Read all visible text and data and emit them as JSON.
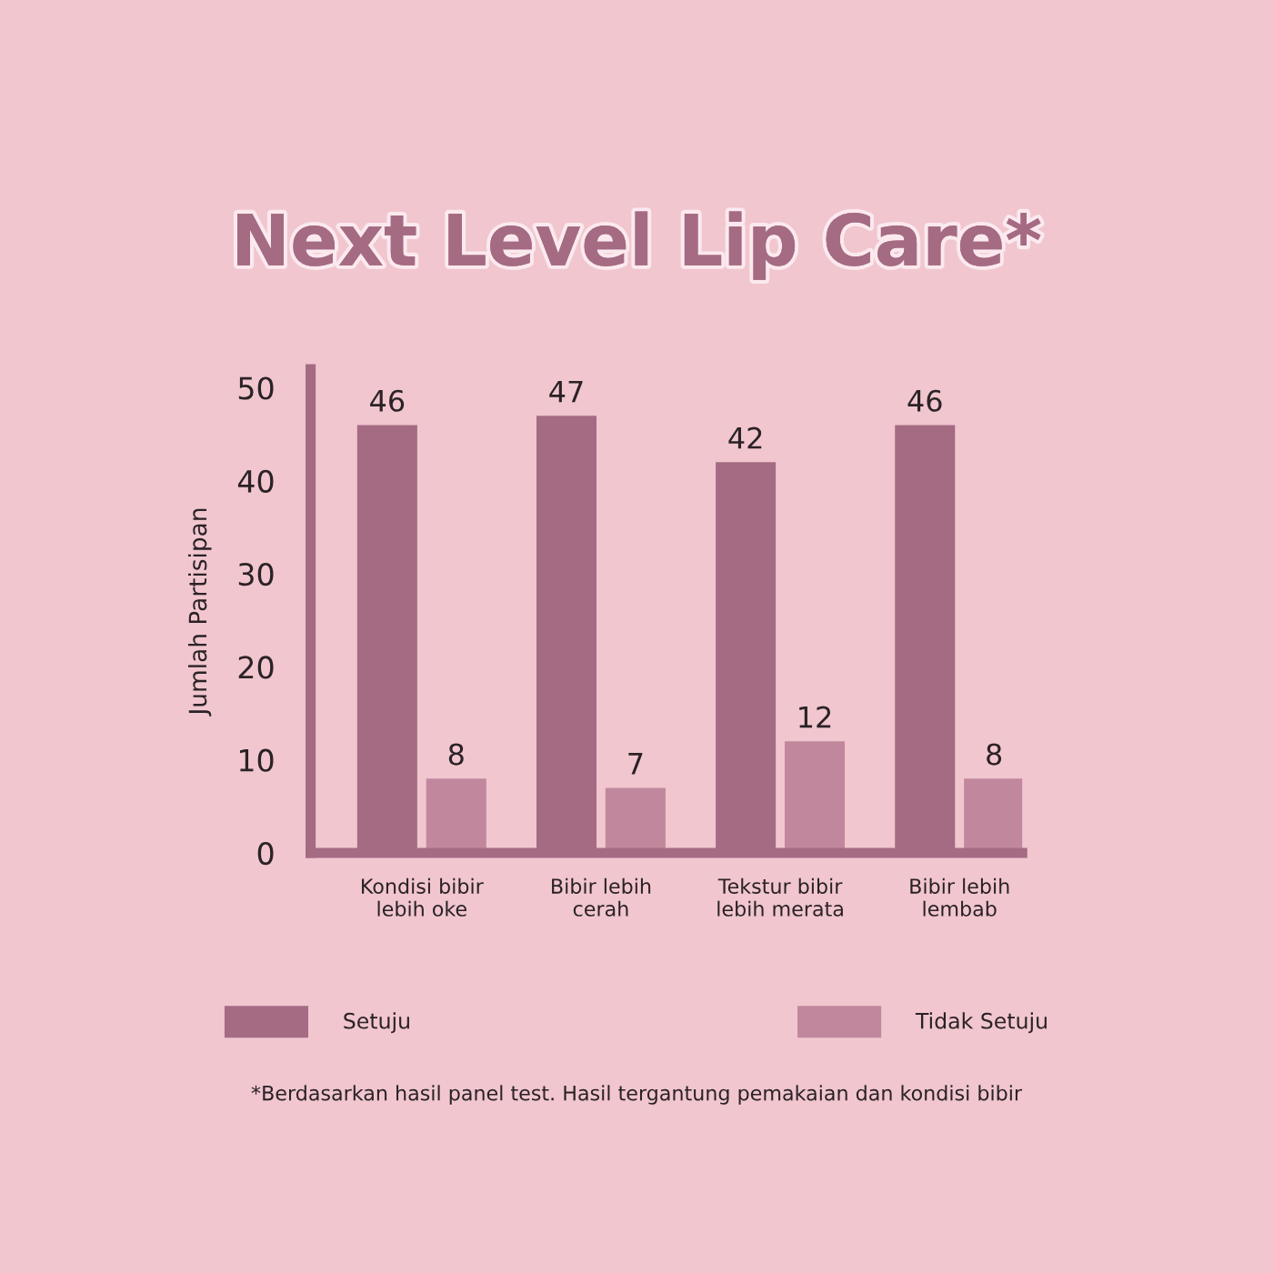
{
  "chart_data": {
    "type": "bar",
    "title": "Next Level Lip Care*",
    "ylabel": "Jumlah Partisipan",
    "categories": [
      "Kondisi bibir\nlebih oke",
      "Bibir lebih\ncerah",
      "Tekstur bibir\nlebih merata",
      "Bibir lebih\nlembab"
    ],
    "series": [
      {
        "name": "Setuju",
        "color": "#a56b83",
        "values": [
          46,
          47,
          42,
          46
        ]
      },
      {
        "name": "Tidak Setuju",
        "color": "#c1889d",
        "values": [
          8,
          7,
          12,
          8
        ]
      }
    ],
    "ylim": [
      0,
      52
    ],
    "yticks": [
      0,
      10,
      20,
      30,
      40,
      50
    ],
    "data_labels": true,
    "legend": "bottom",
    "grid": false,
    "annotations": [
      "*Berdasarkan hasil panel test. Hasil tergantung pemakaian dan kondisi bibir"
    ]
  }
}
